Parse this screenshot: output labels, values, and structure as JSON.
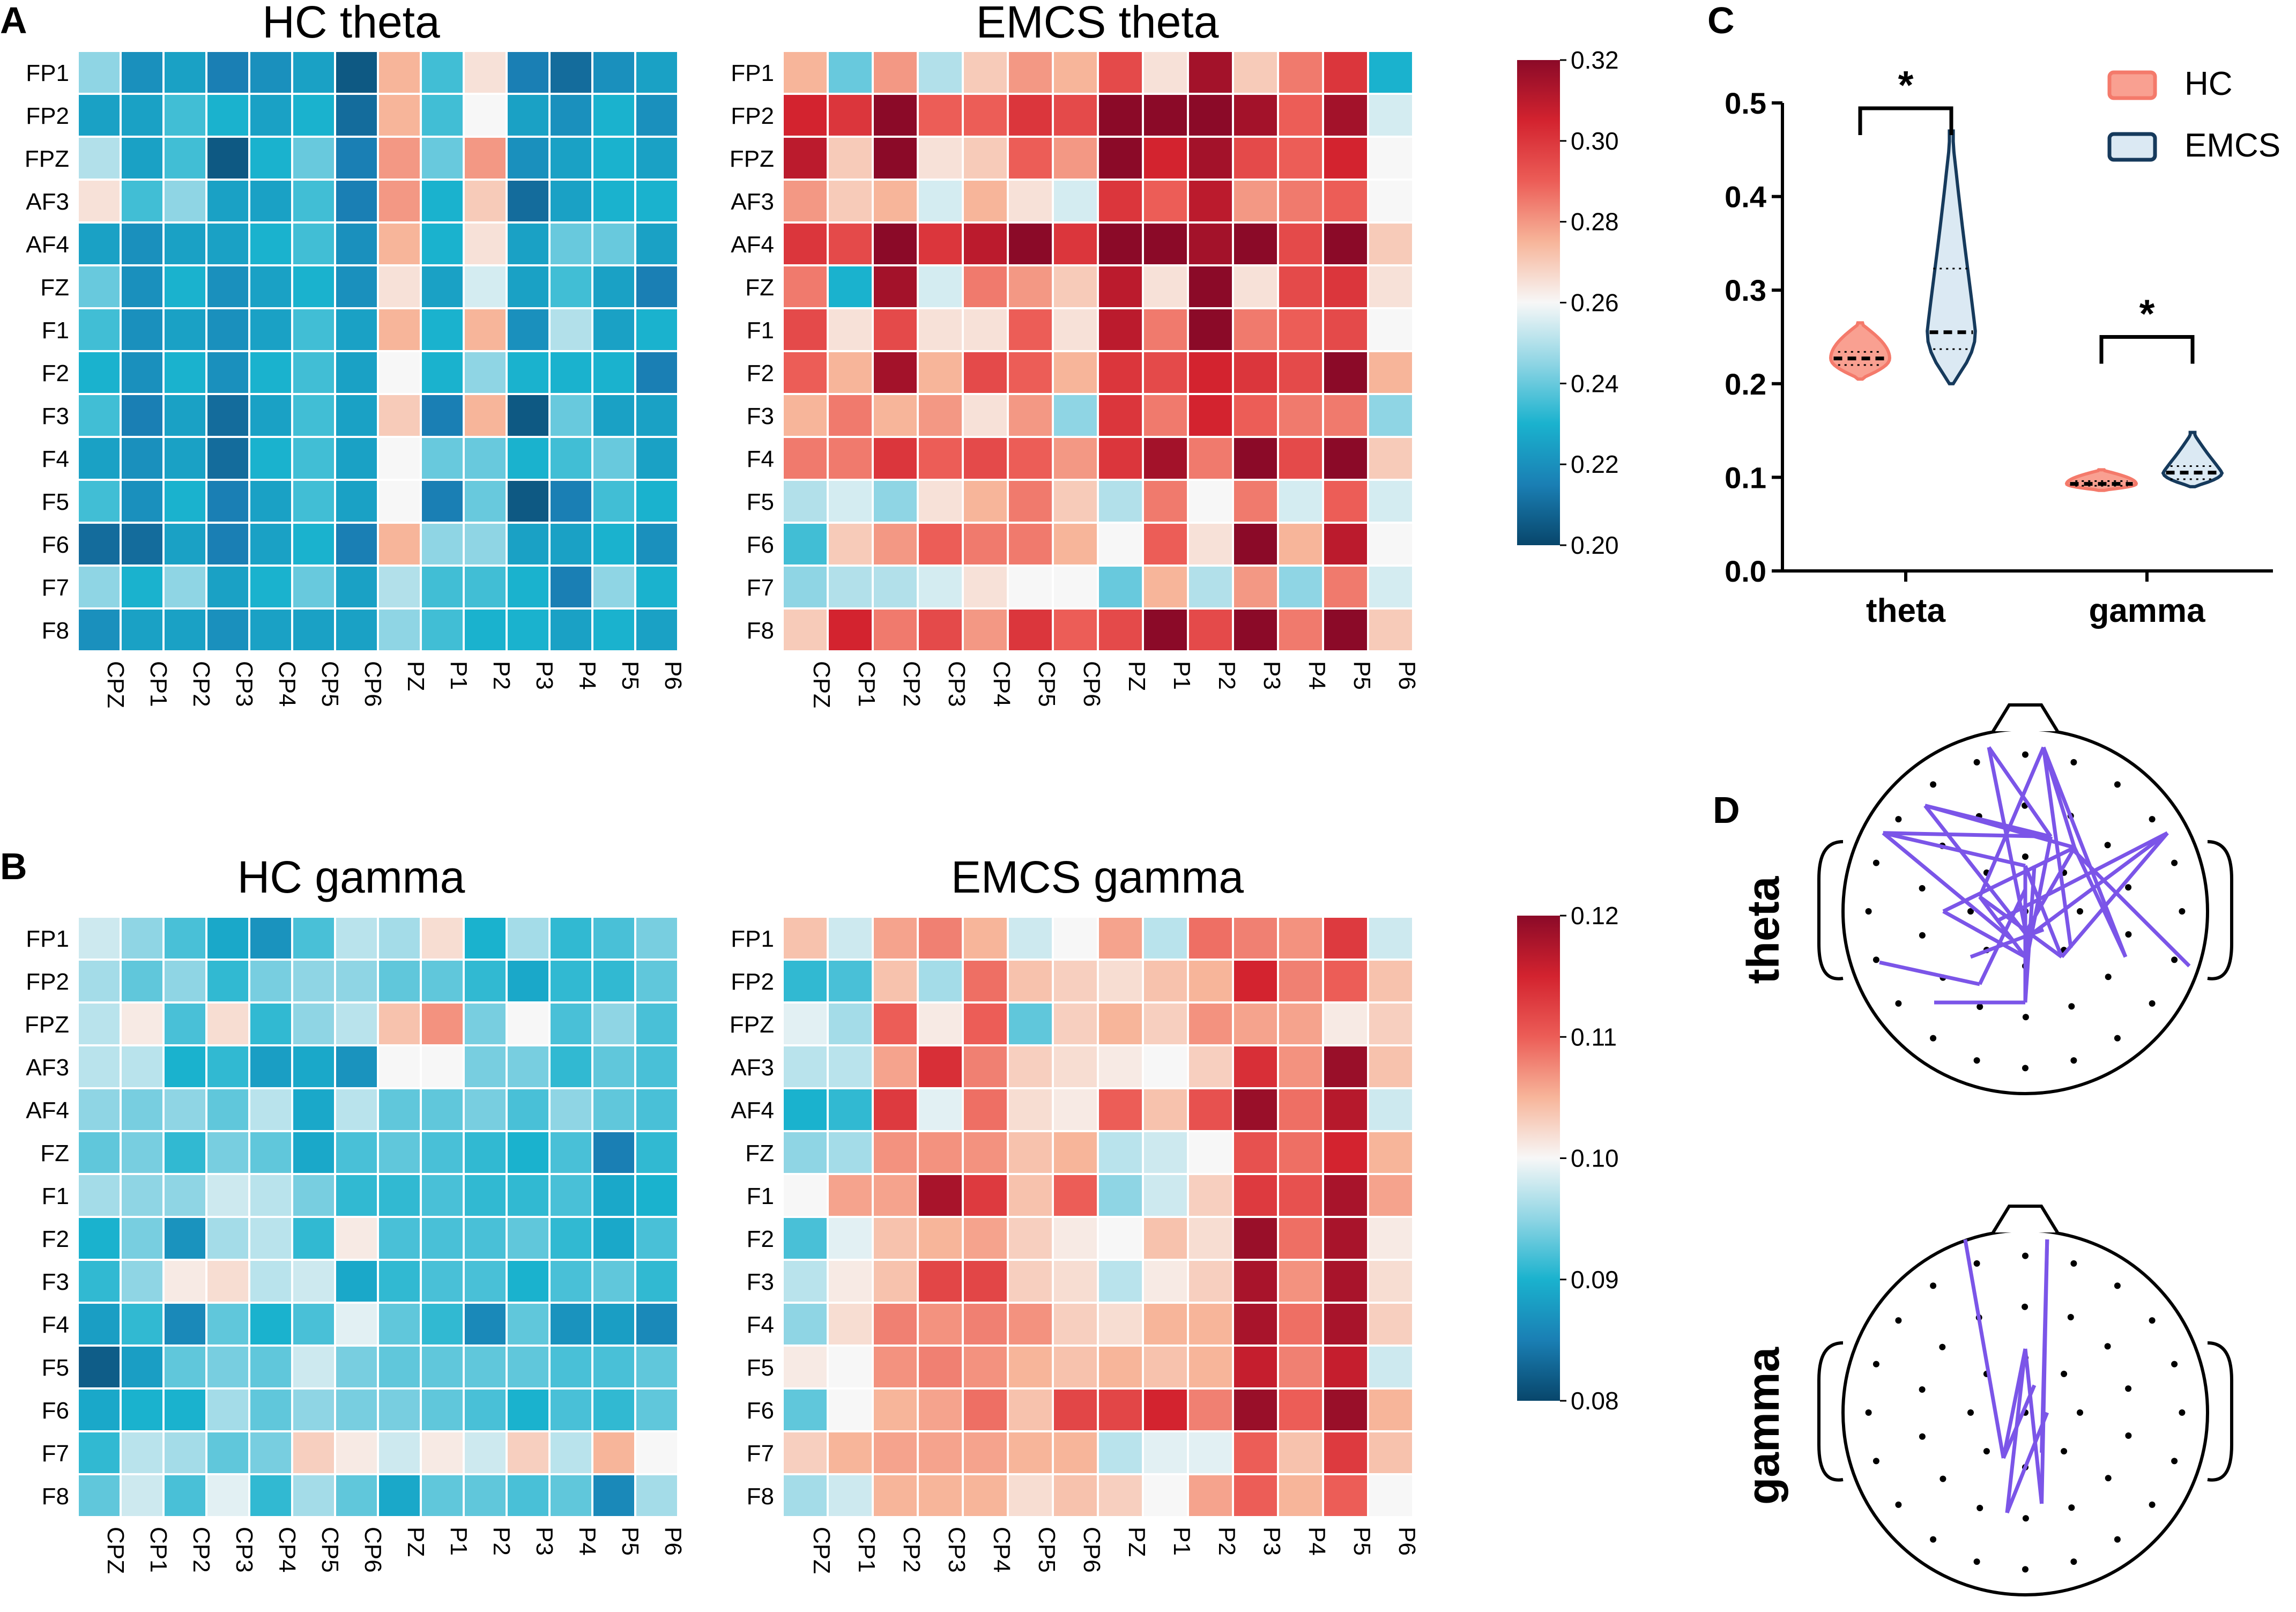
{
  "panel_letters": {
    "a": "A",
    "b": "B",
    "c": "C",
    "d": "D"
  },
  "rows": [
    "FP1",
    "FP2",
    "FPZ",
    "AF3",
    "AF4",
    "FZ",
    "F1",
    "F2",
    "F3",
    "F4",
    "F5",
    "F6",
    "F7",
    "F8"
  ],
  "cols": [
    "CPZ",
    "CP1",
    "CP2",
    "CP3",
    "CP4",
    "CP5",
    "CP6",
    "PZ",
    "P1",
    "P2",
    "P3",
    "P4",
    "P5",
    "P6"
  ],
  "colormap": {
    "stops": [
      "#08466b",
      "#1a7fb4",
      "#1ab2ce",
      "#8fd5e4",
      "#f7f7f7",
      "#f7b59a",
      "#ec5d57",
      "#d3232f",
      "#8b0a28"
    ]
  },
  "chart_data": [
    {
      "type": "heatmap",
      "id": "hc_theta",
      "title": "HC theta",
      "range": [
        0.2,
        0.32
      ],
      "values": [
        [
          0.245,
          0.22,
          0.225,
          0.215,
          0.22,
          0.225,
          0.205,
          0.275,
          0.235,
          0.265,
          0.215,
          0.21,
          0.22,
          0.225
        ],
        [
          0.225,
          0.225,
          0.235,
          0.23,
          0.225,
          0.23,
          0.21,
          0.275,
          0.235,
          0.26,
          0.225,
          0.22,
          0.23,
          0.22
        ],
        [
          0.25,
          0.225,
          0.235,
          0.205,
          0.23,
          0.24,
          0.215,
          0.28,
          0.24,
          0.28,
          0.22,
          0.225,
          0.23,
          0.225
        ],
        [
          0.265,
          0.235,
          0.245,
          0.225,
          0.225,
          0.235,
          0.215,
          0.28,
          0.23,
          0.27,
          0.21,
          0.225,
          0.23,
          0.23
        ],
        [
          0.225,
          0.22,
          0.225,
          0.225,
          0.23,
          0.235,
          0.22,
          0.275,
          0.23,
          0.265,
          0.225,
          0.24,
          0.24,
          0.225
        ],
        [
          0.24,
          0.22,
          0.23,
          0.22,
          0.225,
          0.23,
          0.22,
          0.265,
          0.225,
          0.255,
          0.225,
          0.235,
          0.225,
          0.215
        ],
        [
          0.235,
          0.22,
          0.225,
          0.22,
          0.225,
          0.235,
          0.225,
          0.275,
          0.23,
          0.275,
          0.22,
          0.25,
          0.225,
          0.23
        ],
        [
          0.23,
          0.22,
          0.23,
          0.22,
          0.23,
          0.235,
          0.225,
          0.26,
          0.23,
          0.245,
          0.23,
          0.23,
          0.23,
          0.215
        ],
        [
          0.235,
          0.215,
          0.225,
          0.21,
          0.225,
          0.235,
          0.225,
          0.27,
          0.215,
          0.275,
          0.205,
          0.24,
          0.225,
          0.225
        ],
        [
          0.225,
          0.22,
          0.225,
          0.21,
          0.23,
          0.235,
          0.225,
          0.26,
          0.24,
          0.24,
          0.23,
          0.235,
          0.24,
          0.225
        ],
        [
          0.235,
          0.22,
          0.23,
          0.215,
          0.225,
          0.235,
          0.225,
          0.26,
          0.215,
          0.24,
          0.205,
          0.215,
          0.235,
          0.23
        ],
        [
          0.21,
          0.21,
          0.225,
          0.215,
          0.225,
          0.23,
          0.215,
          0.275,
          0.245,
          0.245,
          0.225,
          0.225,
          0.23,
          0.22
        ],
        [
          0.245,
          0.23,
          0.245,
          0.225,
          0.23,
          0.24,
          0.225,
          0.25,
          0.235,
          0.235,
          0.23,
          0.215,
          0.245,
          0.23
        ],
        [
          0.22,
          0.225,
          0.225,
          0.22,
          0.225,
          0.225,
          0.225,
          0.245,
          0.235,
          0.23,
          0.23,
          0.225,
          0.23,
          0.225
        ]
      ]
    },
    {
      "type": "heatmap",
      "id": "emcs_theta",
      "title": "EMCS theta",
      "range": [
        0.2,
        0.32
      ],
      "values": [
        [
          0.275,
          0.24,
          0.28,
          0.25,
          0.27,
          0.28,
          0.275,
          0.295,
          0.265,
          0.315,
          0.27,
          0.285,
          0.3,
          0.23
        ],
        [
          0.305,
          0.3,
          0.32,
          0.29,
          0.29,
          0.3,
          0.295,
          0.32,
          0.32,
          0.32,
          0.315,
          0.29,
          0.315,
          0.255
        ],
        [
          0.31,
          0.27,
          0.32,
          0.265,
          0.27,
          0.29,
          0.28,
          0.32,
          0.305,
          0.315,
          0.295,
          0.29,
          0.305,
          0.26
        ],
        [
          0.28,
          0.27,
          0.275,
          0.255,
          0.275,
          0.265,
          0.255,
          0.3,
          0.29,
          0.31,
          0.28,
          0.285,
          0.29,
          0.26
        ],
        [
          0.3,
          0.295,
          0.32,
          0.3,
          0.31,
          0.32,
          0.3,
          0.32,
          0.32,
          0.315,
          0.32,
          0.295,
          0.32,
          0.27
        ],
        [
          0.285,
          0.23,
          0.315,
          0.255,
          0.285,
          0.28,
          0.27,
          0.31,
          0.265,
          0.32,
          0.265,
          0.295,
          0.3,
          0.265
        ],
        [
          0.295,
          0.265,
          0.295,
          0.265,
          0.265,
          0.29,
          0.265,
          0.31,
          0.285,
          0.32,
          0.285,
          0.29,
          0.295,
          0.26
        ],
        [
          0.29,
          0.275,
          0.315,
          0.275,
          0.295,
          0.29,
          0.275,
          0.3,
          0.295,
          0.305,
          0.3,
          0.295,
          0.32,
          0.275
        ],
        [
          0.275,
          0.285,
          0.275,
          0.28,
          0.265,
          0.28,
          0.245,
          0.3,
          0.285,
          0.305,
          0.29,
          0.285,
          0.285,
          0.245
        ],
        [
          0.285,
          0.285,
          0.3,
          0.29,
          0.295,
          0.29,
          0.28,
          0.3,
          0.315,
          0.285,
          0.32,
          0.295,
          0.32,
          0.27
        ],
        [
          0.25,
          0.255,
          0.245,
          0.265,
          0.275,
          0.285,
          0.27,
          0.25,
          0.285,
          0.26,
          0.285,
          0.255,
          0.29,
          0.255
        ],
        [
          0.235,
          0.27,
          0.28,
          0.29,
          0.285,
          0.285,
          0.275,
          0.26,
          0.29,
          0.265,
          0.32,
          0.275,
          0.31,
          0.26
        ],
        [
          0.245,
          0.25,
          0.25,
          0.255,
          0.265,
          0.26,
          0.26,
          0.24,
          0.275,
          0.25,
          0.28,
          0.245,
          0.285,
          0.255
        ],
        [
          0.27,
          0.305,
          0.285,
          0.295,
          0.28,
          0.3,
          0.29,
          0.295,
          0.32,
          0.295,
          0.32,
          0.285,
          0.32,
          0.27
        ]
      ]
    },
    {
      "type": "heatmap",
      "id": "hc_gamma",
      "title": "HC gamma",
      "range": [
        0.08,
        0.12
      ],
      "values": [
        [
          0.098,
          0.095,
          0.092,
          0.089,
          0.087,
          0.092,
          0.097,
          0.096,
          0.102,
          0.09,
          0.096,
          0.091,
          0.092,
          0.094
        ],
        [
          0.096,
          0.093,
          0.095,
          0.091,
          0.094,
          0.095,
          0.095,
          0.093,
          0.093,
          0.091,
          0.089,
          0.091,
          0.091,
          0.093
        ],
        [
          0.097,
          0.101,
          0.092,
          0.102,
          0.091,
          0.095,
          0.097,
          0.104,
          0.107,
          0.094,
          0.1,
          0.092,
          0.095,
          0.092
        ],
        [
          0.097,
          0.097,
          0.09,
          0.091,
          0.088,
          0.089,
          0.087,
          0.1,
          0.1,
          0.094,
          0.094,
          0.091,
          0.093,
          0.092
        ],
        [
          0.095,
          0.094,
          0.095,
          0.093,
          0.097,
          0.089,
          0.097,
          0.093,
          0.093,
          0.094,
          0.092,
          0.095,
          0.093,
          0.092
        ],
        [
          0.093,
          0.094,
          0.091,
          0.094,
          0.093,
          0.089,
          0.092,
          0.093,
          0.092,
          0.091,
          0.09,
          0.092,
          0.085,
          0.091
        ],
        [
          0.096,
          0.095,
          0.095,
          0.098,
          0.097,
          0.094,
          0.091,
          0.091,
          0.092,
          0.091,
          0.091,
          0.092,
          0.089,
          0.09
        ],
        [
          0.09,
          0.094,
          0.087,
          0.096,
          0.097,
          0.091,
          0.101,
          0.092,
          0.092,
          0.092,
          0.093,
          0.091,
          0.089,
          0.092
        ],
        [
          0.091,
          0.095,
          0.101,
          0.102,
          0.097,
          0.098,
          0.089,
          0.091,
          0.092,
          0.092,
          0.09,
          0.092,
          0.093,
          0.091
        ],
        [
          0.088,
          0.091,
          0.086,
          0.093,
          0.09,
          0.092,
          0.099,
          0.093,
          0.091,
          0.086,
          0.093,
          0.087,
          0.088,
          0.086
        ],
        [
          0.082,
          0.088,
          0.093,
          0.094,
          0.093,
          0.098,
          0.094,
          0.093,
          0.093,
          0.093,
          0.093,
          0.092,
          0.092,
          0.093
        ],
        [
          0.089,
          0.09,
          0.09,
          0.096,
          0.093,
          0.095,
          0.094,
          0.094,
          0.093,
          0.092,
          0.09,
          0.092,
          0.091,
          0.093
        ],
        [
          0.091,
          0.097,
          0.096,
          0.093,
          0.094,
          0.103,
          0.101,
          0.098,
          0.101,
          0.098,
          0.103,
          0.097,
          0.105,
          0.1
        ],
        [
          0.093,
          0.098,
          0.092,
          0.099,
          0.091,
          0.096,
          0.093,
          0.089,
          0.093,
          0.093,
          0.092,
          0.093,
          0.086,
          0.096
        ]
      ]
    },
    {
      "type": "heatmap",
      "id": "emcs_gamma",
      "title": "EMCS gamma",
      "range": [
        0.08,
        0.12
      ],
      "values": [
        [
          0.104,
          0.098,
          0.106,
          0.108,
          0.105,
          0.098,
          0.1,
          0.106,
          0.097,
          0.109,
          0.108,
          0.107,
          0.113,
          0.098
        ],
        [
          0.091,
          0.092,
          0.104,
          0.096,
          0.109,
          0.104,
          0.103,
          0.102,
          0.104,
          0.105,
          0.115,
          0.108,
          0.11,
          0.104
        ],
        [
          0.099,
          0.096,
          0.11,
          0.101,
          0.11,
          0.093,
          0.103,
          0.105,
          0.103,
          0.107,
          0.106,
          0.106,
          0.101,
          0.103
        ],
        [
          0.097,
          0.097,
          0.106,
          0.114,
          0.108,
          0.103,
          0.102,
          0.101,
          0.1,
          0.103,
          0.114,
          0.107,
          0.119,
          0.104
        ],
        [
          0.09,
          0.091,
          0.113,
          0.099,
          0.109,
          0.102,
          0.101,
          0.11,
          0.104,
          0.111,
          0.119,
          0.109,
          0.117,
          0.098
        ],
        [
          0.095,
          0.096,
          0.107,
          0.107,
          0.107,
          0.104,
          0.105,
          0.097,
          0.098,
          0.1,
          0.111,
          0.109,
          0.115,
          0.105
        ],
        [
          0.1,
          0.106,
          0.106,
          0.118,
          0.113,
          0.104,
          0.11,
          0.095,
          0.098,
          0.103,
          0.113,
          0.111,
          0.118,
          0.106
        ],
        [
          0.092,
          0.099,
          0.104,
          0.105,
          0.106,
          0.103,
          0.101,
          0.1,
          0.104,
          0.102,
          0.119,
          0.109,
          0.118,
          0.101
        ],
        [
          0.097,
          0.101,
          0.104,
          0.112,
          0.112,
          0.103,
          0.102,
          0.097,
          0.101,
          0.103,
          0.118,
          0.107,
          0.118,
          0.102
        ],
        [
          0.095,
          0.102,
          0.108,
          0.107,
          0.108,
          0.107,
          0.103,
          0.102,
          0.105,
          0.105,
          0.118,
          0.109,
          0.118,
          0.103
        ],
        [
          0.101,
          0.1,
          0.107,
          0.108,
          0.107,
          0.105,
          0.104,
          0.105,
          0.104,
          0.105,
          0.116,
          0.108,
          0.116,
          0.098
        ],
        [
          0.093,
          0.1,
          0.105,
          0.106,
          0.109,
          0.104,
          0.112,
          0.112,
          0.115,
          0.108,
          0.119,
          0.11,
          0.119,
          0.105
        ],
        [
          0.103,
          0.105,
          0.106,
          0.106,
          0.106,
          0.105,
          0.105,
          0.097,
          0.099,
          0.099,
          0.11,
          0.104,
          0.113,
          0.104
        ],
        [
          0.096,
          0.098,
          0.105,
          0.105,
          0.105,
          0.102,
          0.104,
          0.103,
          0.1,
          0.106,
          0.11,
          0.105,
          0.11,
          0.1
        ]
      ]
    },
    {
      "type": "violin",
      "id": "violin",
      "ylim": [
        0.0,
        0.5
      ],
      "yticks": [
        "0.0",
        "0.1",
        "0.2",
        "0.3",
        "0.4",
        "0.5"
      ],
      "categories": [
        "theta",
        "gamma"
      ],
      "legend": [
        "HC",
        "EMCS"
      ],
      "significance": [
        "*",
        "*"
      ],
      "series": [
        {
          "name": "HC",
          "color": "#f47a6b",
          "fill": "#f9a091",
          "groups": [
            {
              "min": 0.205,
              "max": 0.265,
              "q1": 0.22,
              "median": 0.227,
              "q3": 0.234
            },
            {
              "min": 0.086,
              "max": 0.108,
              "q1": 0.091,
              "median": 0.093,
              "q3": 0.096
            }
          ]
        },
        {
          "name": "EMCS",
          "color": "#163a5c",
          "fill": "#dbe9f3",
          "groups": [
            {
              "min": 0.2,
              "max": 0.47,
              "q1": 0.237,
              "median": 0.255,
              "q3": 0.323
            },
            {
              "min": 0.09,
              "max": 0.148,
              "q1": 0.098,
              "median": 0.105,
              "q3": 0.112
            }
          ]
        }
      ]
    }
  ],
  "topomaps": {
    "labels": [
      "theta",
      "gamma"
    ],
    "line_color": "#7b55e8"
  }
}
